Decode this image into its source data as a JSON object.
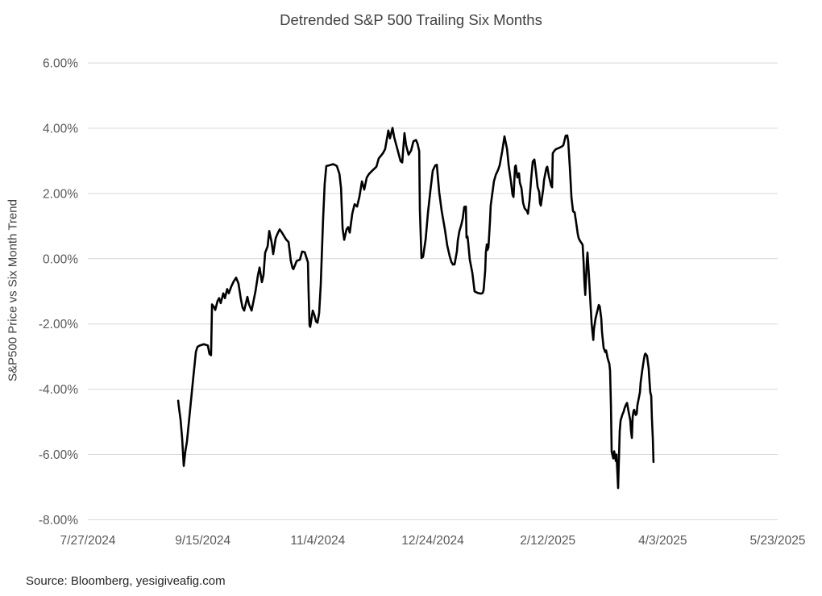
{
  "title": "Detrended S&P 500 Trailing Six Months",
  "source_note": "Source: Bloomberg, yesigiveafig.com",
  "chart_data": {
    "type": "line",
    "title": "Detrended S&P 500 Trailing Six Months",
    "xlabel": "",
    "ylabel": "S&P500 Price vs Six Month Trend",
    "x_axis_note": "date axis; tick interval 50 days; series x stored as days since 7/27/2024",
    "x_tick_labels": [
      "7/27/2024",
      "9/15/2024",
      "11/4/2024",
      "12/24/2024",
      "2/12/2025",
      "4/3/2025",
      "5/23/2025"
    ],
    "x_tick_days": [
      0,
      50,
      100,
      150,
      200,
      250,
      300
    ],
    "xlim_days": [
      0,
      300
    ],
    "y_tick_labels": [
      "6.00%",
      "4.00%",
      "2.00%",
      "0.00%",
      "-2.00%",
      "-4.00%",
      "-6.00%",
      "-8.00%"
    ],
    "y_ticks": [
      6,
      4,
      2,
      0,
      -2,
      -4,
      -6,
      -8
    ],
    "ylim": [
      -8,
      6
    ],
    "grid": "horizontal-only",
    "legend": "none",
    "line_color": "#000000",
    "grid_color": "#d9d9d9",
    "tick_color": "#595959",
    "title_color": "#404040",
    "background_color": "#ffffff",
    "series": [
      {
        "name": "S&P 500 price vs six-month trend (%)",
        "points": [
          [
            39.3,
            -4.35
          ],
          [
            39.6,
            -4.55
          ],
          [
            40.3,
            -4.92
          ],
          [
            41.0,
            -5.5
          ],
          [
            41.7,
            -6.35
          ],
          [
            42.4,
            -5.9
          ],
          [
            43.1,
            -5.6
          ],
          [
            44.5,
            -4.6
          ],
          [
            45.9,
            -3.6
          ],
          [
            47.0,
            -2.85
          ],
          [
            47.7,
            -2.7
          ],
          [
            48.7,
            -2.66
          ],
          [
            50.5,
            -2.62
          ],
          [
            52.2,
            -2.66
          ],
          [
            52.9,
            -2.92
          ],
          [
            53.6,
            -2.96
          ],
          [
            54.0,
            -1.4
          ],
          [
            54.7,
            -1.46
          ],
          [
            55.4,
            -1.57
          ],
          [
            56.4,
            -1.3
          ],
          [
            57.1,
            -1.21
          ],
          [
            57.8,
            -1.36
          ],
          [
            58.9,
            -1.06
          ],
          [
            59.6,
            -1.21
          ],
          [
            60.6,
            -0.93
          ],
          [
            61.3,
            -1.06
          ],
          [
            62.4,
            -0.85
          ],
          [
            63.4,
            -0.7
          ],
          [
            64.5,
            -0.58
          ],
          [
            65.5,
            -0.76
          ],
          [
            66.6,
            -1.25
          ],
          [
            67.3,
            -1.5
          ],
          [
            68.0,
            -1.59
          ],
          [
            69.4,
            -1.17
          ],
          [
            70.1,
            -1.4
          ],
          [
            71.2,
            -1.59
          ],
          [
            72.9,
            -1.0
          ],
          [
            74.0,
            -0.5
          ],
          [
            74.7,
            -0.27
          ],
          [
            75.7,
            -0.72
          ],
          [
            76.4,
            -0.5
          ],
          [
            77.1,
            0.18
          ],
          [
            78.2,
            0.38
          ],
          [
            78.9,
            0.85
          ],
          [
            79.9,
            0.51
          ],
          [
            80.6,
            0.14
          ],
          [
            81.7,
            0.63
          ],
          [
            82.7,
            0.8
          ],
          [
            83.4,
            0.9
          ],
          [
            84.5,
            0.79
          ],
          [
            86.2,
            0.59
          ],
          [
            87.3,
            0.51
          ],
          [
            88.3,
            -0.07
          ],
          [
            89.0,
            -0.28
          ],
          [
            89.4,
            -0.32
          ],
          [
            90.8,
            -0.07
          ],
          [
            92.2,
            -0.03
          ],
          [
            93.2,
            0.22
          ],
          [
            94.3,
            0.2
          ],
          [
            95.7,
            -0.11
          ],
          [
            96.0,
            -1.0
          ],
          [
            96.4,
            -2.04
          ],
          [
            96.7,
            -2.09
          ],
          [
            97.8,
            -1.59
          ],
          [
            98.5,
            -1.72
          ],
          [
            99.2,
            -1.92
          ],
          [
            99.9,
            -1.96
          ],
          [
            100.6,
            -1.67
          ],
          [
            101.3,
            -0.8
          ],
          [
            102.3,
            1.2
          ],
          [
            103.0,
            2.3
          ],
          [
            103.7,
            2.84
          ],
          [
            104.8,
            2.86
          ],
          [
            105.9,
            2.88
          ],
          [
            106.6,
            2.9
          ],
          [
            107.6,
            2.87
          ],
          [
            108.3,
            2.84
          ],
          [
            109.4,
            2.6
          ],
          [
            110.1,
            2.16
          ],
          [
            110.8,
            0.93
          ],
          [
            111.5,
            0.58
          ],
          [
            112.5,
            0.9
          ],
          [
            113.2,
            0.97
          ],
          [
            113.9,
            0.8
          ],
          [
            115.0,
            1.38
          ],
          [
            116.0,
            1.67
          ],
          [
            117.1,
            1.6
          ],
          [
            118.1,
            1.9
          ],
          [
            119.2,
            2.37
          ],
          [
            120.2,
            2.12
          ],
          [
            121.3,
            2.49
          ],
          [
            122.3,
            2.6
          ],
          [
            123.7,
            2.7
          ],
          [
            125.5,
            2.82
          ],
          [
            126.5,
            3.07
          ],
          [
            128.3,
            3.23
          ],
          [
            129.3,
            3.36
          ],
          [
            130.7,
            3.93
          ],
          [
            131.4,
            3.69
          ],
          [
            132.5,
            4.01
          ],
          [
            133.2,
            3.73
          ],
          [
            134.6,
            3.36
          ],
          [
            136.0,
            2.99
          ],
          [
            136.7,
            2.95
          ],
          [
            137.7,
            3.85
          ],
          [
            138.4,
            3.48
          ],
          [
            139.5,
            3.19
          ],
          [
            140.6,
            3.32
          ],
          [
            141.6,
            3.6
          ],
          [
            142.7,
            3.64
          ],
          [
            143.4,
            3.52
          ],
          [
            144.1,
            3.3
          ],
          [
            144.4,
            1.5
          ],
          [
            145.1,
            0.02
          ],
          [
            145.8,
            0.06
          ],
          [
            146.9,
            0.6
          ],
          [
            147.9,
            1.4
          ],
          [
            149.0,
            2.1
          ],
          [
            150.0,
            2.7
          ],
          [
            151.1,
            2.86
          ],
          [
            151.8,
            2.88
          ],
          [
            152.1,
            2.6
          ],
          [
            152.8,
            2.04
          ],
          [
            153.9,
            1.46
          ],
          [
            155.3,
            0.89
          ],
          [
            156.3,
            0.4
          ],
          [
            157.4,
            0.07
          ],
          [
            158.1,
            -0.1
          ],
          [
            158.8,
            -0.18
          ],
          [
            159.5,
            -0.17
          ],
          [
            160.5,
            0.23
          ],
          [
            160.9,
            0.56
          ],
          [
            161.6,
            0.85
          ],
          [
            162.3,
            1.01
          ],
          [
            163.0,
            1.22
          ],
          [
            163.7,
            1.59
          ],
          [
            164.4,
            1.6
          ],
          [
            164.7,
            0.65
          ],
          [
            165.1,
            0.68
          ],
          [
            165.4,
            0.51
          ],
          [
            166.1,
            -0.02
          ],
          [
            167.2,
            -0.43
          ],
          [
            167.9,
            -0.84
          ],
          [
            168.2,
            -1.0
          ],
          [
            169.6,
            -1.05
          ],
          [
            171.0,
            -1.07
          ],
          [
            171.7,
            -1.05
          ],
          [
            172.1,
            -0.96
          ],
          [
            172.8,
            -0.35
          ],
          [
            173.1,
            0.19
          ],
          [
            173.5,
            0.44
          ],
          [
            173.8,
            0.27
          ],
          [
            174.2,
            0.35
          ],
          [
            174.9,
            1.14
          ],
          [
            175.2,
            1.63
          ],
          [
            175.9,
            2.0
          ],
          [
            176.6,
            2.37
          ],
          [
            177.4,
            2.57
          ],
          [
            178.4,
            2.72
          ],
          [
            179.1,
            2.86
          ],
          [
            180.2,
            3.3
          ],
          [
            181.2,
            3.75
          ],
          [
            182.3,
            3.36
          ],
          [
            183.0,
            2.86
          ],
          [
            184.0,
            2.37
          ],
          [
            184.7,
            1.96
          ],
          [
            185.1,
            1.89
          ],
          [
            185.8,
            2.82
          ],
          [
            186.1,
            2.86
          ],
          [
            186.8,
            2.49
          ],
          [
            187.5,
            2.62
          ],
          [
            187.9,
            2.33
          ],
          [
            188.6,
            2.16
          ],
          [
            189.3,
            1.71
          ],
          [
            190.0,
            1.54
          ],
          [
            191.0,
            1.46
          ],
          [
            191.4,
            1.38
          ],
          [
            192.1,
            1.79
          ],
          [
            192.8,
            2.45
          ],
          [
            193.5,
            2.98
          ],
          [
            194.2,
            3.04
          ],
          [
            194.9,
            2.66
          ],
          [
            195.6,
            2.2
          ],
          [
            196.3,
            2.04
          ],
          [
            196.6,
            1.71
          ],
          [
            197.0,
            1.63
          ],
          [
            198.0,
            2.12
          ],
          [
            198.4,
            2.41
          ],
          [
            199.4,
            2.78
          ],
          [
            199.8,
            2.82
          ],
          [
            200.5,
            2.53
          ],
          [
            201.5,
            2.24
          ],
          [
            201.9,
            2.19
          ],
          [
            202.2,
            3.23
          ],
          [
            202.9,
            3.31
          ],
          [
            203.6,
            3.36
          ],
          [
            205.0,
            3.4
          ],
          [
            206.1,
            3.44
          ],
          [
            206.8,
            3.48
          ],
          [
            207.8,
            3.77
          ],
          [
            208.5,
            3.78
          ],
          [
            208.9,
            3.6
          ],
          [
            209.6,
            2.8
          ],
          [
            210.3,
            1.88
          ],
          [
            211.0,
            1.45
          ],
          [
            211.7,
            1.42
          ],
          [
            212.4,
            1.1
          ],
          [
            213.1,
            0.75
          ],
          [
            213.5,
            0.62
          ],
          [
            214.2,
            0.53
          ],
          [
            214.9,
            0.46
          ],
          [
            215.2,
            0.42
          ],
          [
            215.6,
            -0.12
          ],
          [
            215.9,
            -0.62
          ],
          [
            216.3,
            -1.11
          ],
          [
            217.0,
            -0.07
          ],
          [
            217.3,
            0.19
          ],
          [
            218.0,
            -0.6
          ],
          [
            218.7,
            -1.5
          ],
          [
            219.1,
            -2.0
          ],
          [
            219.8,
            -2.49
          ],
          [
            220.1,
            -2.16
          ],
          [
            220.8,
            -1.83
          ],
          [
            221.9,
            -1.5
          ],
          [
            222.2,
            -1.42
          ],
          [
            222.6,
            -1.46
          ],
          [
            223.3,
            -1.83
          ],
          [
            223.6,
            -2.24
          ],
          [
            224.3,
            -2.73
          ],
          [
            225.0,
            -2.86
          ],
          [
            225.4,
            -2.81
          ],
          [
            226.1,
            -3.06
          ],
          [
            226.8,
            -3.22
          ],
          [
            227.1,
            -3.43
          ],
          [
            227.5,
            -4.5
          ],
          [
            227.8,
            -5.91
          ],
          [
            228.5,
            -6.12
          ],
          [
            228.9,
            -5.9
          ],
          [
            229.6,
            -6.2
          ],
          [
            229.9,
            -6.0
          ],
          [
            230.6,
            -7.03
          ],
          [
            231.3,
            -5.28
          ],
          [
            231.7,
            -4.96
          ],
          [
            232.4,
            -4.79
          ],
          [
            233.1,
            -4.67
          ],
          [
            233.4,
            -4.58
          ],
          [
            234.1,
            -4.46
          ],
          [
            234.5,
            -4.42
          ],
          [
            235.2,
            -4.7
          ],
          [
            235.9,
            -4.96
          ],
          [
            236.2,
            -5.28
          ],
          [
            236.6,
            -5.49
          ],
          [
            236.9,
            -4.87
          ],
          [
            237.3,
            -4.67
          ],
          [
            237.6,
            -4.63
          ],
          [
            238.3,
            -4.79
          ],
          [
            238.7,
            -4.75
          ],
          [
            239.0,
            -4.5
          ],
          [
            240.1,
            -4.09
          ],
          [
            240.4,
            -3.8
          ],
          [
            241.1,
            -3.43
          ],
          [
            241.8,
            -3.1
          ],
          [
            242.2,
            -2.94
          ],
          [
            242.5,
            -2.91
          ],
          [
            243.2,
            -2.98
          ],
          [
            243.9,
            -3.35
          ],
          [
            244.3,
            -3.8
          ],
          [
            244.6,
            -4.09
          ],
          [
            245.0,
            -4.21
          ],
          [
            245.3,
            -4.87
          ],
          [
            245.7,
            -5.53
          ],
          [
            246.0,
            -6.23
          ]
        ]
      }
    ]
  }
}
